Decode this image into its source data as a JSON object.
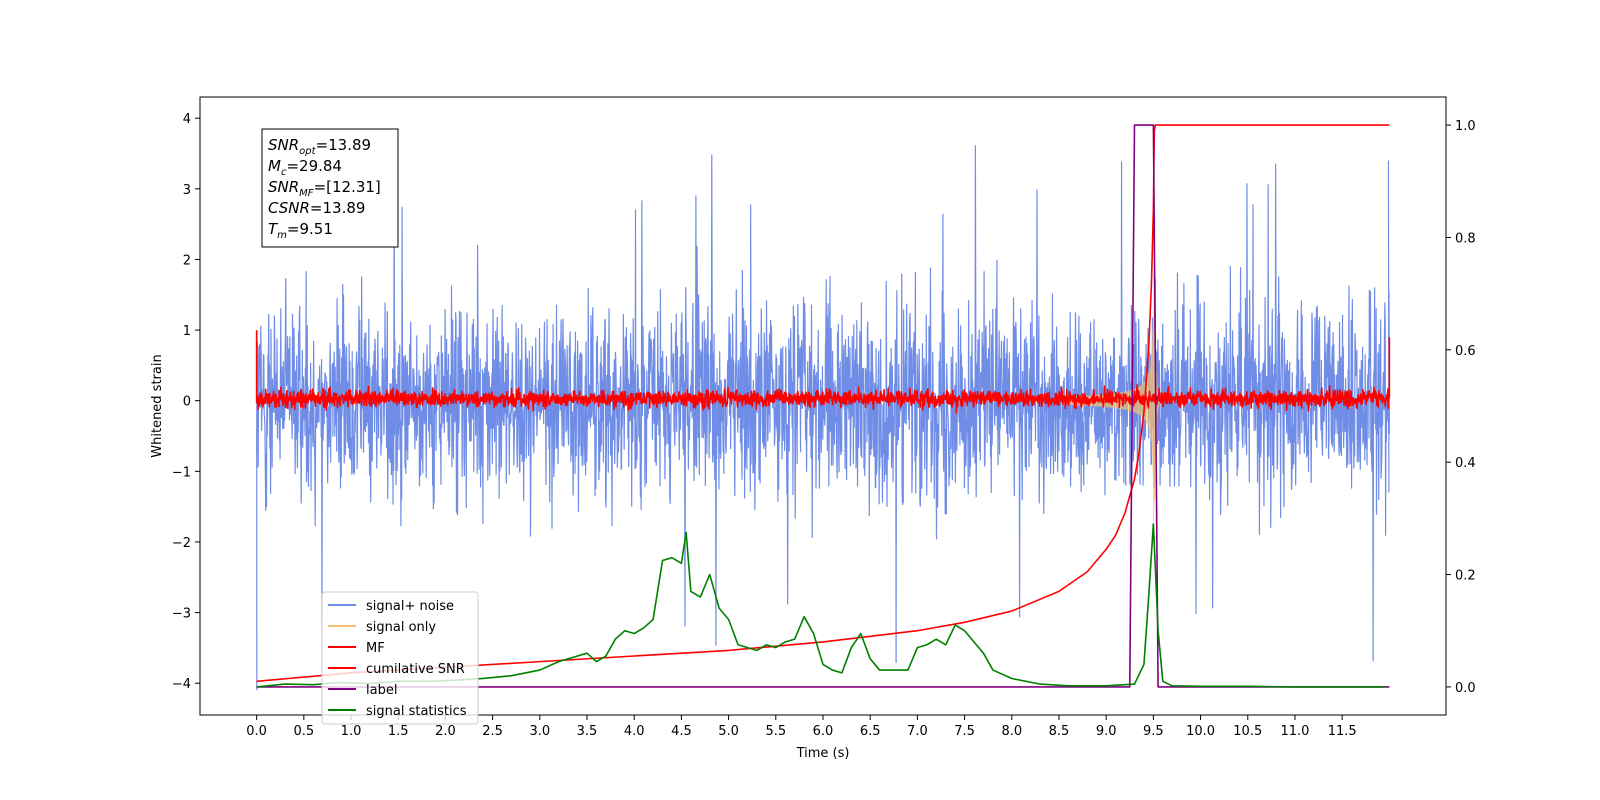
{
  "chart_data": {
    "type": "line",
    "xlabel": "Time (s)",
    "ylabel": "Whitened strain",
    "xlim": [
      -0.6,
      12.6
    ],
    "ylim_left": [
      -4.45,
      4.3
    ],
    "ylim_right": [
      -0.05,
      1.05
    ],
    "x_ticks": [
      0.0,
      0.5,
      1.0,
      1.5,
      2.0,
      2.5,
      3.0,
      3.5,
      4.0,
      4.5,
      5.0,
      5.5,
      6.0,
      6.5,
      7.0,
      7.5,
      8.0,
      8.5,
      9.0,
      9.5,
      10.0,
      10.5,
      11.0,
      11.5
    ],
    "x_tick_labels": [
      "0.0",
      "0.5",
      "1.0",
      "1.5",
      "2.0",
      "2.5",
      "3.0",
      "3.5",
      "4.0",
      "4.5",
      "5.0",
      "5.5",
      "6.0",
      "6.5",
      "7.0",
      "7.5",
      "8.0",
      "8.5",
      "9.0",
      "9.5",
      "10.0",
      "10.5",
      "11.0",
      "11.5"
    ],
    "y_left_ticks": [
      4,
      3,
      2,
      1,
      0,
      -1,
      -2,
      -3,
      -4
    ],
    "y_left_tick_labels": [
      "4",
      "3",
      "2",
      "1",
      "0",
      "−1",
      "−2",
      "−3",
      "−4"
    ],
    "y_right_ticks": [
      1.0,
      0.8,
      0.6,
      0.4,
      0.2,
      0.0
    ],
    "y_right_tick_labels": [
      "1.0",
      "0.8",
      "0.6",
      "0.4",
      "0.2",
      "0.0"
    ],
    "info_box": {
      "lines": [
        {
          "base": "SNR",
          "sub": "opt",
          "value": "=13.89"
        },
        {
          "base": "M",
          "sub": "c",
          "value": "=29.84"
        },
        {
          "base": "SNR",
          "sub": "MF",
          "value": "=[12.31]"
        },
        {
          "base": "CSNR",
          "sub": "",
          "value": "=13.89"
        },
        {
          "base": "T",
          "sub": "m",
          "value": "=9.51"
        }
      ]
    },
    "legend": {
      "placement": "lower-left",
      "entries": [
        {
          "label": "signal+ noise",
          "color": "#6f8de6"
        },
        {
          "label": "signal only",
          "color": "#f5c26b"
        },
        {
          "label": "MF",
          "color": "#ff0000"
        },
        {
          "label": "cumilative SNR",
          "color": "#ff0000"
        },
        {
          "label": "label",
          "color": "#800080"
        },
        {
          "label": "signal statistics",
          "color": "#008000"
        }
      ]
    },
    "series": [
      {
        "name": "signal+ noise",
        "axis": "left",
        "color": "#6f8de6",
        "kind": "noise",
        "x_range": [
          0.0,
          12.0
        ],
        "peak_amplitude": 3.9
      },
      {
        "name": "signal only",
        "axis": "left",
        "color": "#f5c26b",
        "kind": "chirp",
        "merger_time": 9.51,
        "x_range": [
          8.6,
          9.6
        ],
        "peak_amplitude": 1.8
      },
      {
        "name": "MF",
        "axis": "left",
        "color": "#ff0000",
        "kind": "noise",
        "x_range": [
          0.0,
          12.0
        ],
        "amplitude": 0.15
      },
      {
        "name": "cumilative SNR",
        "axis": "right",
        "color": "#ff0000",
        "x": [
          0.0,
          1.0,
          2.0,
          3.0,
          4.0,
          5.0,
          6.0,
          7.0,
          7.5,
          8.0,
          8.5,
          8.8,
          9.0,
          9.1,
          9.2,
          9.3,
          9.35,
          9.4,
          9.45,
          9.48,
          9.5,
          9.51,
          9.52,
          12.0
        ],
        "y": [
          0.01,
          0.025,
          0.035,
          0.045,
          0.055,
          0.065,
          0.08,
          0.1,
          0.115,
          0.135,
          0.17,
          0.205,
          0.245,
          0.27,
          0.31,
          0.37,
          0.42,
          0.49,
          0.6,
          0.72,
          0.85,
          0.99,
          1.0,
          1.0
        ]
      },
      {
        "name": "label",
        "axis": "right",
        "color": "#800080",
        "x": [
          0.0,
          9.25,
          9.3,
          9.5,
          9.55,
          12.0
        ],
        "y": [
          0.0,
          0.0,
          1.0,
          1.0,
          0.0,
          0.0
        ]
      },
      {
        "name": "signal statistics",
        "axis": "right",
        "color": "#008000",
        "x": [
          0.0,
          0.3,
          0.6,
          0.9,
          1.2,
          1.5,
          1.8,
          2.1,
          2.4,
          2.7,
          3.0,
          3.2,
          3.4,
          3.5,
          3.6,
          3.7,
          3.8,
          3.9,
          4.0,
          4.1,
          4.2,
          4.3,
          4.4,
          4.5,
          4.55,
          4.6,
          4.7,
          4.8,
          4.9,
          5.0,
          5.1,
          5.2,
          5.3,
          5.4,
          5.5,
          5.6,
          5.7,
          5.8,
          5.9,
          6.0,
          6.1,
          6.2,
          6.3,
          6.4,
          6.5,
          6.6,
          6.7,
          6.8,
          6.9,
          7.0,
          7.1,
          7.2,
          7.3,
          7.4,
          7.5,
          7.6,
          7.7,
          7.8,
          8.0,
          8.3,
          8.6,
          9.0,
          9.3,
          9.4,
          9.45,
          9.5,
          9.55,
          9.6,
          9.7,
          10.0,
          10.5,
          11.0,
          11.5,
          11.95
        ],
        "y": [
          0.0,
          0.005,
          0.004,
          0.008,
          0.006,
          0.01,
          0.01,
          0.012,
          0.015,
          0.02,
          0.03,
          0.045,
          0.055,
          0.06,
          0.045,
          0.055,
          0.085,
          0.1,
          0.095,
          0.105,
          0.12,
          0.225,
          0.23,
          0.22,
          0.275,
          0.17,
          0.16,
          0.2,
          0.14,
          0.12,
          0.075,
          0.07,
          0.065,
          0.075,
          0.07,
          0.08,
          0.085,
          0.125,
          0.095,
          0.04,
          0.03,
          0.025,
          0.07,
          0.095,
          0.05,
          0.03,
          0.03,
          0.03,
          0.03,
          0.07,
          0.075,
          0.085,
          0.075,
          0.11,
          0.1,
          0.08,
          0.06,
          0.03,
          0.015,
          0.005,
          0.002,
          0.002,
          0.005,
          0.04,
          0.16,
          0.29,
          0.1,
          0.01,
          0.002,
          0.001,
          0.001,
          0.0,
          0.0,
          0.0
        ]
      }
    ]
  }
}
